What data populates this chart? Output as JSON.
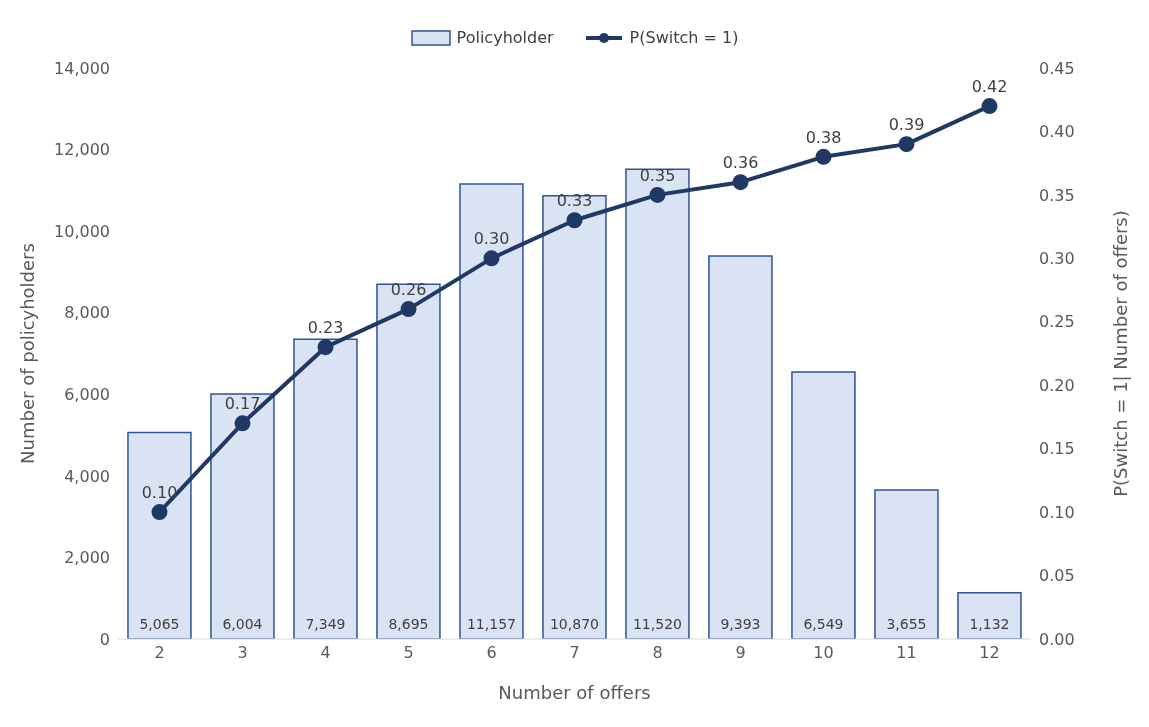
{
  "chart_data": {
    "type": "bar",
    "xlabel": "Number of offers",
    "ylabel": "Number of policyholders",
    "y2label": "P(Switch = 1| Number of offers)",
    "categories": [
      "2",
      "3",
      "4",
      "5",
      "6",
      "7",
      "8",
      "9",
      "10",
      "11",
      "12"
    ],
    "series": [
      {
        "name": "Policyholder",
        "color": "#dae3f3",
        "values": [
          5065,
          6004,
          7349,
          8695,
          11157,
          10870,
          11520,
          9393,
          6549,
          3655,
          1132
        ],
        "value_labels": [
          "5,065",
          "6,004",
          "7,349",
          "8,695",
          "11,157",
          "10,870",
          "11,520",
          "9,393",
          "6,549",
          "3,655",
          "1,132"
        ]
      },
      {
        "name": "P(Switch = 1)",
        "type": "line",
        "axis": "y2",
        "color": "#203864",
        "values": [
          0.1,
          0.17,
          0.23,
          0.26,
          0.3,
          0.33,
          0.35,
          0.36,
          0.38,
          0.39,
          0.42
        ],
        "value_labels": [
          "0.10",
          "0.17",
          "0.23",
          "0.26",
          "0.30",
          "0.33",
          "0.35",
          "0.36",
          "0.38",
          "0.39",
          "0.42"
        ]
      }
    ],
    "ylim": [
      0,
      14000
    ],
    "yticks": [
      {
        "value": 0,
        "label": "0"
      },
      {
        "value": 2000,
        "label": "2,000"
      },
      {
        "value": 4000,
        "label": "4,000"
      },
      {
        "value": 6000,
        "label": "6,000"
      },
      {
        "value": 8000,
        "label": "8,000"
      },
      {
        "value": 10000,
        "label": "10,000"
      },
      {
        "value": 12000,
        "label": "12,000"
      },
      {
        "value": 14000,
        "label": "14,000"
      }
    ],
    "y2lim": [
      0,
      0.45
    ],
    "y2ticks": [
      {
        "value": 0,
        "label": "0.00"
      },
      {
        "value": 0.05,
        "label": "0.05"
      },
      {
        "value": 0.1,
        "label": "0.10"
      },
      {
        "value": 0.15,
        "label": "0.15"
      },
      {
        "value": 0.2,
        "label": "0.20"
      },
      {
        "value": 0.25,
        "label": "0.25"
      },
      {
        "value": 0.3,
        "label": "0.30"
      },
      {
        "value": 0.35,
        "label": "0.35"
      },
      {
        "value": 0.4,
        "label": "0.40"
      },
      {
        "value": 0.45,
        "label": "0.45"
      }
    ],
    "legend": "top",
    "marker": "circle"
  }
}
